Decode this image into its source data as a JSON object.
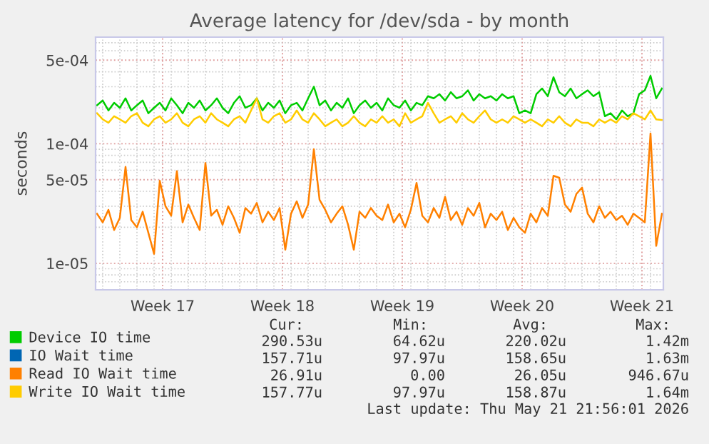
{
  "chart_data": {
    "type": "line",
    "title": "Average latency for /dev/sda - by month",
    "ylabel": "seconds",
    "log": "y",
    "grid": true,
    "legend": "bottom",
    "line_style": "solid",
    "marker": "none",
    "ylim": [
      6e-06,
      0.00078
    ],
    "yticks": [
      {
        "value": 1e-05,
        "label": "1e-05"
      },
      {
        "value": 5e-05,
        "label": "5e-05"
      },
      {
        "value": 0.0001,
        "label": "1e-04"
      },
      {
        "value": 0.0005,
        "label": "5e-04"
      }
    ],
    "xlim": [
      "2026-04-19T14:00",
      "2026-05-22T18:00"
    ],
    "xticks": [
      {
        "value": "2026-04-23T12:00",
        "label": "Week 17"
      },
      {
        "value": "2026-04-30T12:00",
        "label": "Week 18"
      },
      {
        "value": "2026-05-07T12:00",
        "label": "Week 19"
      },
      {
        "value": "2026-05-14T12:00",
        "label": "Week 20"
      },
      {
        "value": "2026-05-21T12:00",
        "label": "Week 21"
      }
    ],
    "x": [
      "2026-04-19T16:00",
      "2026-04-20T00:00",
      "2026-04-20T08:00",
      "2026-04-20T16:00",
      "2026-04-21T00:00",
      "2026-04-21T08:00",
      "2026-04-21T16:00",
      "2026-04-22T00:00",
      "2026-04-22T08:00",
      "2026-04-22T16:00",
      "2026-04-23T00:00",
      "2026-04-23T08:00",
      "2026-04-23T16:00",
      "2026-04-24T00:00",
      "2026-04-24T08:00",
      "2026-04-24T16:00",
      "2026-04-25T00:00",
      "2026-04-25T08:00",
      "2026-04-25T16:00",
      "2026-04-26T00:00",
      "2026-04-26T08:00",
      "2026-04-26T16:00",
      "2026-04-27T00:00",
      "2026-04-27T08:00",
      "2026-04-27T16:00",
      "2026-04-28T00:00",
      "2026-04-28T08:00",
      "2026-04-28T16:00",
      "2026-04-29T00:00",
      "2026-04-29T08:00",
      "2026-04-29T16:00",
      "2026-04-30T00:00",
      "2026-04-30T08:00",
      "2026-04-30T16:00",
      "2026-05-01T00:00",
      "2026-05-01T08:00",
      "2026-05-01T16:00",
      "2026-05-02T00:00",
      "2026-05-02T08:00",
      "2026-05-02T16:00",
      "2026-05-03T00:00",
      "2026-05-03T08:00",
      "2026-05-03T16:00",
      "2026-05-04T00:00",
      "2026-05-04T08:00",
      "2026-05-04T16:00",
      "2026-05-05T00:00",
      "2026-05-05T08:00",
      "2026-05-05T16:00",
      "2026-05-06T00:00",
      "2026-05-06T08:00",
      "2026-05-06T16:00",
      "2026-05-07T00:00",
      "2026-05-07T08:00",
      "2026-05-07T16:00",
      "2026-05-08T00:00",
      "2026-05-08T08:00",
      "2026-05-08T16:00",
      "2026-05-09T00:00",
      "2026-05-09T08:00",
      "2026-05-09T16:00",
      "2026-05-10T00:00",
      "2026-05-10T08:00",
      "2026-05-10T16:00",
      "2026-05-11T00:00",
      "2026-05-11T08:00",
      "2026-05-11T16:00",
      "2026-05-12T00:00",
      "2026-05-12T08:00",
      "2026-05-12T16:00",
      "2026-05-13T00:00",
      "2026-05-13T08:00",
      "2026-05-13T16:00",
      "2026-05-14T00:00",
      "2026-05-14T08:00",
      "2026-05-14T16:00",
      "2026-05-15T00:00",
      "2026-05-15T08:00",
      "2026-05-15T16:00",
      "2026-05-16T00:00",
      "2026-05-16T08:00",
      "2026-05-16T16:00",
      "2026-05-17T00:00",
      "2026-05-17T08:00",
      "2026-05-17T16:00",
      "2026-05-18T00:00",
      "2026-05-18T08:00",
      "2026-05-18T16:00",
      "2026-05-19T00:00",
      "2026-05-19T08:00",
      "2026-05-19T16:00",
      "2026-05-20T00:00",
      "2026-05-20T08:00",
      "2026-05-20T16:00",
      "2026-05-21T00:00",
      "2026-05-21T08:00",
      "2026-05-21T16:00",
      "2026-05-22T00:00",
      "2026-05-22T08:00",
      "2026-05-22T16:00"
    ],
    "series": [
      {
        "name": "Device IO time",
        "color": "#00cc00",
        "values": [
          0.00021,
          0.00023,
          0.00019,
          0.00022,
          0.0002,
          0.00024,
          0.00019,
          0.00021,
          0.00023,
          0.00018,
          0.0002,
          0.00022,
          0.00019,
          0.00024,
          0.00021,
          0.00018,
          0.00022,
          0.0002,
          0.00023,
          0.00019,
          0.00021,
          0.00024,
          0.0002,
          0.00018,
          0.00022,
          0.00025,
          0.0002,
          0.00021,
          0.00024,
          0.00019,
          0.00022,
          0.0002,
          0.00023,
          0.00018,
          0.00021,
          0.00022,
          0.00019,
          0.00024,
          0.0003,
          0.00021,
          0.00023,
          0.00019,
          0.00022,
          0.0002,
          0.00024,
          0.00018,
          0.00021,
          0.00023,
          0.0002,
          0.00022,
          0.00019,
          0.00024,
          0.00021,
          0.0002,
          0.00023,
          0.00019,
          0.00022,
          0.00021,
          0.00025,
          0.00024,
          0.00026,
          0.00023,
          0.00027,
          0.00024,
          0.00025,
          0.00028,
          0.00023,
          0.00026,
          0.00024,
          0.00025,
          0.00023,
          0.00026,
          0.00024,
          0.00025,
          0.00018,
          0.00019,
          0.00018,
          0.00026,
          0.00029,
          0.00025,
          0.00036,
          0.00027,
          0.00025,
          0.00029,
          0.00024,
          0.00026,
          0.00028,
          0.00025,
          0.00027,
          0.00017,
          0.00018,
          0.00016,
          0.00019,
          0.00017,
          0.00018,
          0.00026,
          0.00028,
          0.00037,
          0.00024,
          0.00029
        ]
      },
      {
        "name": "IO Wait time",
        "color": "#0066b3",
        "values": [
          null,
          null,
          null,
          null,
          null,
          null,
          null,
          null,
          null,
          null,
          null,
          null,
          null,
          null,
          null,
          null,
          null,
          null,
          null,
          null,
          null,
          null,
          null,
          null,
          null,
          null,
          null,
          null,
          null,
          null,
          null,
          null,
          null,
          null,
          null,
          null,
          null,
          null,
          null,
          null,
          null,
          null,
          null,
          null,
          null,
          null,
          null,
          null,
          null,
          null,
          null,
          null,
          null,
          null,
          null,
          null,
          null,
          null,
          null,
          null,
          null,
          null,
          null,
          null,
          null,
          null,
          null,
          null,
          null,
          null,
          null,
          null,
          null,
          null,
          null,
          null,
          null,
          null,
          null,
          null,
          null,
          null,
          null,
          null,
          null,
          null,
          null,
          null,
          null,
          null,
          null,
          null,
          null,
          null,
          null,
          null,
          null,
          null,
          null,
          null
        ]
      },
      {
        "name": "Read IO Wait time",
        "color": "#ff8000",
        "values": [
          2.6e-05,
          2.2e-05,
          2.8e-05,
          1.9e-05,
          2.4e-05,
          6.4e-05,
          2.3e-05,
          2e-05,
          2.7e-05,
          1.8e-05,
          1.2e-05,
          4.9e-05,
          3e-05,
          2.5e-05,
          5.9e-05,
          2.2e-05,
          3.1e-05,
          2.4e-05,
          1.9e-05,
          6.9e-05,
          2.5e-05,
          2.8e-05,
          2.1e-05,
          3e-05,
          2.4e-05,
          1.8e-05,
          2.9e-05,
          2.6e-05,
          3.2e-05,
          2.2e-05,
          2.7e-05,
          2.3e-05,
          2.9e-05,
          1.3e-05,
          2.6e-05,
          3.3e-05,
          2.4e-05,
          3.1e-05,
          9e-05,
          3.4e-05,
          2.8e-05,
          2.2e-05,
          2.6e-05,
          3e-05,
          2.1e-05,
          1.3e-05,
          2.7e-05,
          2.4e-05,
          2.9e-05,
          2.5e-05,
          2.3e-05,
          3.1e-05,
          2.2e-05,
          2.6e-05,
          2e-05,
          2.8e-05,
          4.7e-05,
          2.5e-05,
          2.2e-05,
          2.9e-05,
          2.4e-05,
          3.6e-05,
          2.3e-05,
          2.7e-05,
          2.1e-05,
          2.9e-05,
          2.5e-05,
          3.2e-05,
          2e-05,
          2.6e-05,
          2.3e-05,
          2.7e-05,
          1.9e-05,
          2.4e-05,
          2e-05,
          1.8e-05,
          2.6e-05,
          2.2e-05,
          2.9e-05,
          2.5e-05,
          5.4e-05,
          5.2e-05,
          3.1e-05,
          2.7e-05,
          3.8e-05,
          4.3e-05,
          2.6e-05,
          2.2e-05,
          3e-05,
          2.4e-05,
          2.7e-05,
          2.3e-05,
          2.5e-05,
          2.1e-05,
          2.6e-05,
          2.4e-05,
          2.2e-05,
          0.000122,
          1.4e-05,
          2.6e-05
        ]
      },
      {
        "name": "Write IO Wait time",
        "color": "#ffcc00",
        "values": [
          0.00018,
          0.00016,
          0.00015,
          0.00017,
          0.00016,
          0.00015,
          0.00017,
          0.00018,
          0.00015,
          0.00014,
          0.00016,
          0.00017,
          0.00015,
          0.00016,
          0.00018,
          0.00015,
          0.00014,
          0.00016,
          0.00017,
          0.00015,
          0.00018,
          0.00016,
          0.00015,
          0.00014,
          0.00016,
          0.00017,
          0.00015,
          0.00019,
          0.00024,
          0.00016,
          0.00015,
          0.00017,
          0.00018,
          0.00015,
          0.00016,
          0.00019,
          0.00016,
          0.00015,
          0.00018,
          0.00016,
          0.00014,
          0.00015,
          0.00016,
          0.00014,
          0.00015,
          0.00017,
          0.00015,
          0.00014,
          0.00016,
          0.00015,
          0.00017,
          0.00015,
          0.00016,
          0.00014,
          0.00018,
          0.00015,
          0.00016,
          0.00017,
          0.00022,
          0.00018,
          0.00015,
          0.00016,
          0.00017,
          0.00015,
          0.00018,
          0.00016,
          0.00015,
          0.00017,
          0.00019,
          0.00016,
          0.00015,
          0.00016,
          0.00015,
          0.00017,
          0.00016,
          0.00015,
          0.00016,
          0.00015,
          0.00014,
          0.00016,
          0.00015,
          0.00017,
          0.00015,
          0.00014,
          0.00016,
          0.00015,
          0.00015,
          0.00014,
          0.00016,
          0.00015,
          0.00016,
          0.00015,
          0.00017,
          0.00016,
          0.00018,
          0.00017,
          0.00016,
          0.00019,
          0.00016,
          0.000158
        ]
      }
    ],
    "annotations": [
      "Cur:",
      "Min:",
      "Avg:",
      "Max:",
      "290.53u",
      "64.62u",
      "220.02u",
      "1.42m",
      "157.71u",
      "97.97u",
      "158.65u",
      "1.63m",
      "26.91u",
      "0.00",
      "26.05u",
      "946.67u",
      "157.77u",
      "97.97u",
      "158.87u",
      "1.64m",
      "Last update: Thu May 21 21:56:01 2026"
    ]
  }
}
